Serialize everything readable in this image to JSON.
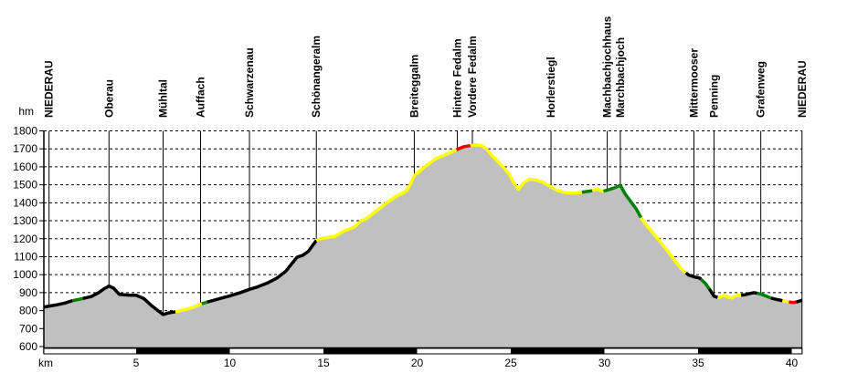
{
  "chart_data": {
    "type": "area",
    "title": "",
    "xlabel": "km",
    "ylabel": "hm",
    "xlim": [
      0,
      40.55
    ],
    "ylim": [
      600,
      1800
    ],
    "x_ticks": [
      5,
      10,
      15,
      20,
      25,
      30,
      35,
      40
    ],
    "y_ticks": [
      600,
      700,
      800,
      900,
      1000,
      1100,
      1200,
      1300,
      1400,
      1500,
      1600,
      1700,
      1800
    ],
    "grid": "horizontal-dashed",
    "legend": "none",
    "colors": {
      "background": "#ffffff",
      "area_fill": "#c0c0c0",
      "axis": "#000000",
      "trail_black": "#000000",
      "trail_yellow": "#ffff00",
      "trail_green": "#008000",
      "trail_red": "#ee0000"
    },
    "waypoints": [
      {
        "name": "NIEDERAU",
        "km": 0.35
      },
      {
        "name": "Oberau",
        "km": 3.55
      },
      {
        "name": "Mühltal",
        "km": 6.44
      },
      {
        "name": "Auffach",
        "km": 8.44
      },
      {
        "name": "Schwarzenau",
        "km": 11.05
      },
      {
        "name": "Schönangeralm",
        "km": 14.62
      },
      {
        "name": "Breiteggalm",
        "km": 19.85
      },
      {
        "name": "Hintere Fedalm",
        "km": 22.15
      },
      {
        "name": "Vordere Fedalm",
        "km": 22.95
      },
      {
        "name": "Horlerstiegl",
        "km": 27.15
      },
      {
        "name": "Machbachjochhaus",
        "km": 30.15
      },
      {
        "name": "Marchbachjoch",
        "km": 30.85
      },
      {
        "name": "Mittermooser",
        "km": 34.78
      },
      {
        "name": "Penning",
        "km": 35.85
      },
      {
        "name": "Grafenweg",
        "km": 38.35
      },
      {
        "name": "NIEDERAU",
        "km": 40.55
      }
    ],
    "profile_km_hm": [
      [
        0.075,
        820
      ],
      [
        0.4,
        826
      ],
      [
        0.8,
        833
      ],
      [
        1.2,
        842
      ],
      [
        1.6,
        855
      ],
      [
        2.1,
        866
      ],
      [
        2.6,
        878
      ],
      [
        3.0,
        900
      ],
      [
        3.3,
        922
      ],
      [
        3.55,
        937
      ],
      [
        3.8,
        924
      ],
      [
        4.1,
        890
      ],
      [
        4.6,
        886
      ],
      [
        5.0,
        885
      ],
      [
        5.4,
        868
      ],
      [
        5.8,
        830
      ],
      [
        6.1,
        805
      ],
      [
        6.44,
        778
      ],
      [
        6.7,
        786
      ],
      [
        7.1,
        794
      ],
      [
        7.5,
        803
      ],
      [
        7.9,
        813
      ],
      [
        8.2,
        825
      ],
      [
        8.44,
        836
      ],
      [
        8.75,
        846
      ],
      [
        9.0,
        853
      ],
      [
        9.5,
        868
      ],
      [
        10.0,
        882
      ],
      [
        10.5,
        898
      ],
      [
        11.05,
        918
      ],
      [
        11.5,
        933
      ],
      [
        12.0,
        953
      ],
      [
        12.5,
        980
      ],
      [
        13.0,
        1020
      ],
      [
        13.3,
        1060
      ],
      [
        13.6,
        1098
      ],
      [
        13.9,
        1108
      ],
      [
        14.2,
        1130
      ],
      [
        14.62,
        1190
      ],
      [
        14.9,
        1202
      ],
      [
        15.3,
        1208
      ],
      [
        15.6,
        1212
      ],
      [
        16.0,
        1238
      ],
      [
        16.3,
        1252
      ],
      [
        16.6,
        1262
      ],
      [
        17.0,
        1298
      ],
      [
        17.3,
        1312
      ],
      [
        17.7,
        1345
      ],
      [
        18.0,
        1368
      ],
      [
        18.4,
        1402
      ],
      [
        18.7,
        1422
      ],
      [
        19.0,
        1443
      ],
      [
        19.2,
        1452
      ],
      [
        19.45,
        1468
      ],
      [
        19.65,
        1505
      ],
      [
        19.85,
        1552
      ],
      [
        20.1,
        1572
      ],
      [
        20.4,
        1600
      ],
      [
        20.7,
        1622
      ],
      [
        21.0,
        1645
      ],
      [
        21.4,
        1663
      ],
      [
        21.8,
        1680
      ],
      [
        22.15,
        1697
      ],
      [
        22.5,
        1712
      ],
      [
        22.85,
        1718
      ],
      [
        23.15,
        1722
      ],
      [
        23.45,
        1719
      ],
      [
        23.7,
        1700
      ],
      [
        24.0,
        1662
      ],
      [
        24.3,
        1630
      ],
      [
        24.6,
        1598
      ],
      [
        24.9,
        1560
      ],
      [
        25.2,
        1505
      ],
      [
        25.4,
        1473
      ],
      [
        25.7,
        1512
      ],
      [
        26.0,
        1532
      ],
      [
        26.3,
        1528
      ],
      [
        26.7,
        1515
      ],
      [
        27.15,
        1488
      ],
      [
        27.5,
        1467
      ],
      [
        27.9,
        1457
      ],
      [
        28.3,
        1453
      ],
      [
        28.7,
        1456
      ],
      [
        29.0,
        1462
      ],
      [
        29.3,
        1466
      ],
      [
        29.6,
        1477
      ],
      [
        29.9,
        1463
      ],
      [
        30.15,
        1470
      ],
      [
        30.5,
        1482
      ],
      [
        30.85,
        1497
      ],
      [
        31.1,
        1450
      ],
      [
        31.4,
        1408
      ],
      [
        31.7,
        1365
      ],
      [
        32.0,
        1308
      ],
      [
        32.3,
        1268
      ],
      [
        32.7,
        1218
      ],
      [
        33.0,
        1180
      ],
      [
        33.4,
        1128
      ],
      [
        33.8,
        1072
      ],
      [
        34.2,
        1022
      ],
      [
        34.5,
        998
      ],
      [
        34.78,
        988
      ],
      [
        35.1,
        980
      ],
      [
        35.4,
        950
      ],
      [
        35.7,
        905
      ],
      [
        35.85,
        880
      ],
      [
        36.1,
        872
      ],
      [
        36.4,
        884
      ],
      [
        36.6,
        875
      ],
      [
        36.8,
        870
      ],
      [
        37.0,
        882
      ],
      [
        37.2,
        885
      ],
      [
        37.5,
        888
      ],
      [
        37.8,
        896
      ],
      [
        38.0,
        900
      ],
      [
        38.35,
        892
      ],
      [
        38.6,
        882
      ],
      [
        38.9,
        870
      ],
      [
        39.2,
        862
      ],
      [
        39.5,
        855
      ],
      [
        39.8,
        849
      ],
      [
        40.1,
        845
      ],
      [
        40.3,
        849
      ],
      [
        40.55,
        858
      ]
    ],
    "trail_segments": [
      {
        "from_km": 0.075,
        "to_km": 1.6,
        "color": "trail_black"
      },
      {
        "from_km": 1.6,
        "to_km": 2.15,
        "color": "trail_green"
      },
      {
        "from_km": 2.15,
        "to_km": 7.1,
        "color": "trail_black"
      },
      {
        "from_km": 7.1,
        "to_km": 8.5,
        "color": "trail_yellow"
      },
      {
        "from_km": 8.5,
        "to_km": 8.8,
        "color": "trail_green"
      },
      {
        "from_km": 8.8,
        "to_km": 14.62,
        "color": "trail_black"
      },
      {
        "from_km": 14.62,
        "to_km": 22.1,
        "color": "trail_yellow"
      },
      {
        "from_km": 22.1,
        "to_km": 22.85,
        "color": "trail_red"
      },
      {
        "from_km": 22.85,
        "to_km": 28.8,
        "color": "trail_yellow"
      },
      {
        "from_km": 28.8,
        "to_km": 29.35,
        "color": "trail_green"
      },
      {
        "from_km": 29.35,
        "to_km": 29.95,
        "color": "trail_yellow"
      },
      {
        "from_km": 29.95,
        "to_km": 31.95,
        "color": "trail_green"
      },
      {
        "from_km": 31.95,
        "to_km": 34.35,
        "color": "trail_yellow"
      },
      {
        "from_km": 34.35,
        "to_km": 35.15,
        "color": "trail_black"
      },
      {
        "from_km": 35.15,
        "to_km": 35.6,
        "color": "trail_green"
      },
      {
        "from_km": 35.6,
        "to_km": 36.05,
        "color": "trail_black"
      },
      {
        "from_km": 36.05,
        "to_km": 37.3,
        "color": "trail_yellow"
      },
      {
        "from_km": 37.3,
        "to_km": 38.15,
        "color": "trail_black"
      },
      {
        "from_km": 38.15,
        "to_km": 38.9,
        "color": "trail_green"
      },
      {
        "from_km": 38.9,
        "to_km": 39.5,
        "color": "trail_black"
      },
      {
        "from_km": 39.5,
        "to_km": 39.85,
        "color": "trail_yellow"
      },
      {
        "from_km": 39.85,
        "to_km": 40.25,
        "color": "trail_red"
      },
      {
        "from_km": 40.25,
        "to_km": 40.55,
        "color": "trail_black"
      }
    ],
    "distance_bar": {
      "interval_km": 5,
      "first_color": "#ffffff",
      "alternate_color": "#000000"
    }
  }
}
